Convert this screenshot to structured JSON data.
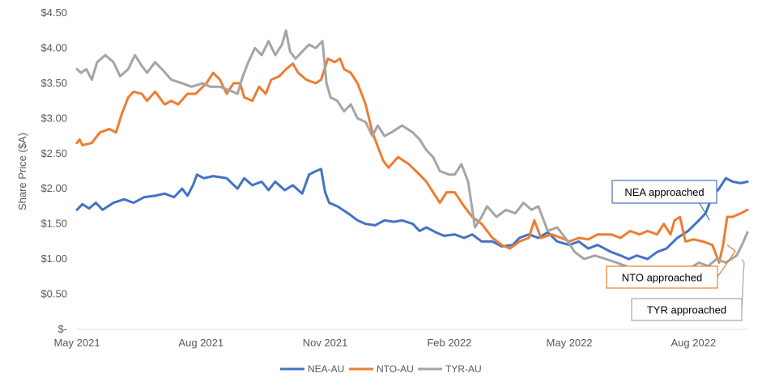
{
  "chart_data": {
    "type": "line",
    "title": "",
    "xlabel": "",
    "ylabel": "Share Price ($A)",
    "ylim": [
      0,
      4.5
    ],
    "yticks": [
      0,
      0.5,
      1.0,
      1.5,
      2.0,
      2.5,
      3.0,
      3.5,
      4.0,
      4.5
    ],
    "ytick_labels": [
      "$-",
      "$0.50",
      "$1.00",
      "$1.50",
      "$2.00",
      "$2.50",
      "$3.00",
      "$3.50",
      "$4.00",
      "$4.50"
    ],
    "xlim": [
      "2021-05-01",
      "2022-09-10"
    ],
    "xticks": [
      "2021-05-01",
      "2021-08-01",
      "2021-11-01",
      "2022-02-01",
      "2022-05-01",
      "2022-08-01"
    ],
    "xtick_labels": [
      "May 2021",
      "Aug 2021",
      "Nov 2021",
      "Feb 2022",
      "May 2022",
      "Aug 2022"
    ],
    "grid": false,
    "legend_position": "bottom",
    "series": [
      {
        "name": "NEA-AU",
        "color": "#4472C4",
        "points": [
          [
            "2021-05-01",
            1.7
          ],
          [
            "2021-05-05",
            1.78
          ],
          [
            "2021-05-10",
            1.72
          ],
          [
            "2021-05-15",
            1.8
          ],
          [
            "2021-05-20",
            1.7
          ],
          [
            "2021-05-28",
            1.8
          ],
          [
            "2021-06-05",
            1.85
          ],
          [
            "2021-06-12",
            1.8
          ],
          [
            "2021-06-20",
            1.88
          ],
          [
            "2021-06-28",
            1.9
          ],
          [
            "2021-07-05",
            1.93
          ],
          [
            "2021-07-12",
            1.88
          ],
          [
            "2021-07-18",
            2.0
          ],
          [
            "2021-07-22",
            1.9
          ],
          [
            "2021-07-26",
            2.05
          ],
          [
            "2021-07-29",
            2.2
          ],
          [
            "2021-08-03",
            2.15
          ],
          [
            "2021-08-10",
            2.18
          ],
          [
            "2021-08-20",
            2.15
          ],
          [
            "2021-08-28",
            2.0
          ],
          [
            "2021-09-02",
            2.15
          ],
          [
            "2021-09-08",
            2.05
          ],
          [
            "2021-09-15",
            2.1
          ],
          [
            "2021-09-20",
            1.98
          ],
          [
            "2021-09-25",
            2.1
          ],
          [
            "2021-10-02",
            1.98
          ],
          [
            "2021-10-08",
            2.05
          ],
          [
            "2021-10-15",
            1.93
          ],
          [
            "2021-10-20",
            2.2
          ],
          [
            "2021-10-25",
            2.25
          ],
          [
            "2021-10-29",
            2.28
          ],
          [
            "2021-11-01",
            1.95
          ],
          [
            "2021-11-04",
            1.8
          ],
          [
            "2021-11-10",
            1.75
          ],
          [
            "2021-11-18",
            1.65
          ],
          [
            "2021-11-25",
            1.55
          ],
          [
            "2021-12-01",
            1.5
          ],
          [
            "2021-12-08",
            1.48
          ],
          [
            "2021-12-15",
            1.55
          ],
          [
            "2021-12-22",
            1.53
          ],
          [
            "2021-12-28",
            1.55
          ],
          [
            "2022-01-05",
            1.5
          ],
          [
            "2022-01-10",
            1.4
          ],
          [
            "2022-01-15",
            1.45
          ],
          [
            "2022-01-22",
            1.38
          ],
          [
            "2022-01-28",
            1.33
          ],
          [
            "2022-02-05",
            1.35
          ],
          [
            "2022-02-12",
            1.3
          ],
          [
            "2022-02-18",
            1.35
          ],
          [
            "2022-02-25",
            1.25
          ],
          [
            "2022-03-05",
            1.25
          ],
          [
            "2022-03-12",
            1.18
          ],
          [
            "2022-03-20",
            1.2
          ],
          [
            "2022-03-25",
            1.3
          ],
          [
            "2022-04-01",
            1.35
          ],
          [
            "2022-04-08",
            1.3
          ],
          [
            "2022-04-15",
            1.38
          ],
          [
            "2022-04-22",
            1.25
          ],
          [
            "2022-05-01",
            1.2
          ],
          [
            "2022-05-08",
            1.25
          ],
          [
            "2022-05-15",
            1.15
          ],
          [
            "2022-05-22",
            1.2
          ],
          [
            "2022-06-01",
            1.1
          ],
          [
            "2022-06-08",
            1.05
          ],
          [
            "2022-06-14",
            1.0
          ],
          [
            "2022-06-20",
            1.05
          ],
          [
            "2022-06-28",
            1.0
          ],
          [
            "2022-07-05",
            1.1
          ],
          [
            "2022-07-12",
            1.15
          ],
          [
            "2022-07-20",
            1.3
          ],
          [
            "2022-07-28",
            1.4
          ],
          [
            "2022-08-05",
            1.55
          ],
          [
            "2022-08-10",
            1.65
          ],
          [
            "2022-08-15",
            1.9
          ],
          [
            "2022-08-20",
            2.0
          ],
          [
            "2022-08-25",
            2.15
          ],
          [
            "2022-08-30",
            2.1
          ],
          [
            "2022-09-05",
            2.08
          ],
          [
            "2022-09-10",
            2.1
          ]
        ]
      },
      {
        "name": "NTO-AU",
        "color": "#ED7D31",
        "points": [
          [
            "2021-05-01",
            2.65
          ],
          [
            "2021-05-03",
            2.7
          ],
          [
            "2021-05-05",
            2.62
          ],
          [
            "2021-05-12",
            2.65
          ],
          [
            "2021-05-18",
            2.8
          ],
          [
            "2021-05-25",
            2.85
          ],
          [
            "2021-05-30",
            2.8
          ],
          [
            "2021-06-03",
            3.05
          ],
          [
            "2021-06-08",
            3.3
          ],
          [
            "2021-06-12",
            3.38
          ],
          [
            "2021-06-18",
            3.35
          ],
          [
            "2021-06-22",
            3.25
          ],
          [
            "2021-06-28",
            3.38
          ],
          [
            "2021-07-05",
            3.2
          ],
          [
            "2021-07-10",
            3.25
          ],
          [
            "2021-07-15",
            3.2
          ],
          [
            "2021-07-22",
            3.35
          ],
          [
            "2021-07-28",
            3.35
          ],
          [
            "2021-08-05",
            3.5
          ],
          [
            "2021-08-10",
            3.65
          ],
          [
            "2021-08-15",
            3.55
          ],
          [
            "2021-08-20",
            3.35
          ],
          [
            "2021-08-25",
            3.5
          ],
          [
            "2021-08-30",
            3.5
          ],
          [
            "2021-09-02",
            3.3
          ],
          [
            "2021-09-08",
            3.25
          ],
          [
            "2021-09-13",
            3.45
          ],
          [
            "2021-09-18",
            3.35
          ],
          [
            "2021-09-22",
            3.55
          ],
          [
            "2021-09-28",
            3.6
          ],
          [
            "2021-10-03",
            3.7
          ],
          [
            "2021-10-08",
            3.78
          ],
          [
            "2021-10-12",
            3.65
          ],
          [
            "2021-10-18",
            3.55
          ],
          [
            "2021-10-25",
            3.5
          ],
          [
            "2021-10-29",
            3.55
          ],
          [
            "2021-11-03",
            3.85
          ],
          [
            "2021-11-08",
            3.8
          ],
          [
            "2021-11-12",
            3.85
          ],
          [
            "2021-11-15",
            3.7
          ],
          [
            "2021-11-20",
            3.65
          ],
          [
            "2021-11-25",
            3.5
          ],
          [
            "2021-12-01",
            3.2
          ],
          [
            "2021-12-06",
            2.8
          ],
          [
            "2021-12-10",
            2.6
          ],
          [
            "2021-12-14",
            2.4
          ],
          [
            "2021-12-18",
            2.3
          ],
          [
            "2021-12-25",
            2.45
          ],
          [
            "2022-01-02",
            2.35
          ],
          [
            "2022-01-10",
            2.2
          ],
          [
            "2022-01-15",
            2.1
          ],
          [
            "2022-01-20",
            1.95
          ],
          [
            "2022-01-25",
            1.8
          ],
          [
            "2022-01-30",
            1.95
          ],
          [
            "2022-02-05",
            1.95
          ],
          [
            "2022-02-12",
            1.75
          ],
          [
            "2022-02-18",
            1.6
          ],
          [
            "2022-02-25",
            1.5
          ],
          [
            "2022-03-05",
            1.3
          ],
          [
            "2022-03-12",
            1.2
          ],
          [
            "2022-03-18",
            1.15
          ],
          [
            "2022-03-25",
            1.25
          ],
          [
            "2022-04-01",
            1.3
          ],
          [
            "2022-04-05",
            1.55
          ],
          [
            "2022-04-10",
            1.3
          ],
          [
            "2022-04-18",
            1.35
          ],
          [
            "2022-04-25",
            1.3
          ],
          [
            "2022-05-01",
            1.25
          ],
          [
            "2022-05-08",
            1.3
          ],
          [
            "2022-05-15",
            1.28
          ],
          [
            "2022-05-22",
            1.35
          ],
          [
            "2022-06-01",
            1.35
          ],
          [
            "2022-06-08",
            1.3
          ],
          [
            "2022-06-15",
            1.4
          ],
          [
            "2022-06-22",
            1.35
          ],
          [
            "2022-06-28",
            1.4
          ],
          [
            "2022-07-05",
            1.35
          ],
          [
            "2022-07-10",
            1.5
          ],
          [
            "2022-07-15",
            1.35
          ],
          [
            "2022-07-18",
            1.55
          ],
          [
            "2022-07-22",
            1.6
          ],
          [
            "2022-07-26",
            1.25
          ],
          [
            "2022-08-01",
            1.28
          ],
          [
            "2022-08-08",
            1.25
          ],
          [
            "2022-08-15",
            1.2
          ],
          [
            "2022-08-20",
            0.95
          ],
          [
            "2022-08-23",
            1.2
          ],
          [
            "2022-08-26",
            1.6
          ],
          [
            "2022-08-30",
            1.6
          ],
          [
            "2022-09-05",
            1.65
          ],
          [
            "2022-09-10",
            1.7
          ]
        ]
      },
      {
        "name": "TYR-AU",
        "color": "#A5A5A5",
        "points": [
          [
            "2021-05-01",
            3.7
          ],
          [
            "2021-05-04",
            3.65
          ],
          [
            "2021-05-08",
            3.7
          ],
          [
            "2021-05-12",
            3.55
          ],
          [
            "2021-05-16",
            3.8
          ],
          [
            "2021-05-22",
            3.9
          ],
          [
            "2021-05-28",
            3.8
          ],
          [
            "2021-06-02",
            3.6
          ],
          [
            "2021-06-08",
            3.7
          ],
          [
            "2021-06-13",
            3.9
          ],
          [
            "2021-06-18",
            3.75
          ],
          [
            "2021-06-22",
            3.65
          ],
          [
            "2021-06-28",
            3.8
          ],
          [
            "2021-07-03",
            3.7
          ],
          [
            "2021-07-10",
            3.55
          ],
          [
            "2021-07-18",
            3.5
          ],
          [
            "2021-07-25",
            3.45
          ],
          [
            "2021-08-02",
            3.5
          ],
          [
            "2021-08-08",
            3.45
          ],
          [
            "2021-08-15",
            3.45
          ],
          [
            "2021-08-22",
            3.4
          ],
          [
            "2021-08-28",
            3.35
          ],
          [
            "2021-09-01",
            3.6
          ],
          [
            "2021-09-05",
            3.8
          ],
          [
            "2021-09-10",
            4.0
          ],
          [
            "2021-09-15",
            3.9
          ],
          [
            "2021-09-20",
            4.1
          ],
          [
            "2021-09-25",
            3.9
          ],
          [
            "2021-09-30",
            4.05
          ],
          [
            "2021-10-03",
            4.25
          ],
          [
            "2021-10-06",
            3.95
          ],
          [
            "2021-10-10",
            3.85
          ],
          [
            "2021-10-15",
            3.95
          ],
          [
            "2021-10-20",
            4.05
          ],
          [
            "2021-10-25",
            4.0
          ],
          [
            "2021-10-30",
            4.1
          ],
          [
            "2021-11-02",
            3.5
          ],
          [
            "2021-11-05",
            3.3
          ],
          [
            "2021-11-10",
            3.25
          ],
          [
            "2021-11-15",
            3.1
          ],
          [
            "2021-11-20",
            3.2
          ],
          [
            "2021-11-25",
            3.0
          ],
          [
            "2021-12-01",
            2.95
          ],
          [
            "2021-12-06",
            2.75
          ],
          [
            "2021-12-10",
            2.9
          ],
          [
            "2021-12-15",
            2.75
          ],
          [
            "2021-12-20",
            2.8
          ],
          [
            "2021-12-28",
            2.9
          ],
          [
            "2022-01-05",
            2.8
          ],
          [
            "2022-01-10",
            2.7
          ],
          [
            "2022-01-15",
            2.55
          ],
          [
            "2022-01-20",
            2.45
          ],
          [
            "2022-01-25",
            2.25
          ],
          [
            "2022-02-01",
            2.2
          ],
          [
            "2022-02-05",
            2.2
          ],
          [
            "2022-02-10",
            2.35
          ],
          [
            "2022-02-15",
            2.1
          ],
          [
            "2022-02-20",
            1.45
          ],
          [
            "2022-02-25",
            1.6
          ],
          [
            "2022-03-01",
            1.75
          ],
          [
            "2022-03-08",
            1.6
          ],
          [
            "2022-03-15",
            1.7
          ],
          [
            "2022-03-22",
            1.65
          ],
          [
            "2022-03-28",
            1.8
          ],
          [
            "2022-04-03",
            1.7
          ],
          [
            "2022-04-08",
            1.75
          ],
          [
            "2022-04-15",
            1.4
          ],
          [
            "2022-04-22",
            1.45
          ],
          [
            "2022-04-28",
            1.3
          ],
          [
            "2022-05-05",
            1.1
          ],
          [
            "2022-05-12",
            1.0
          ],
          [
            "2022-05-20",
            1.05
          ],
          [
            "2022-05-28",
            1.0
          ],
          [
            "2022-06-05",
            0.95
          ],
          [
            "2022-06-12",
            0.9
          ],
          [
            "2022-06-20",
            0.8
          ],
          [
            "2022-06-28",
            0.7
          ],
          [
            "2022-07-05",
            0.6
          ],
          [
            "2022-07-12",
            0.65
          ],
          [
            "2022-07-20",
            0.8
          ],
          [
            "2022-07-28",
            0.85
          ],
          [
            "2022-08-05",
            0.95
          ],
          [
            "2022-08-12",
            0.9
          ],
          [
            "2022-08-18",
            1.0
          ],
          [
            "2022-08-25",
            0.95
          ],
          [
            "2022-08-29",
            1.0
          ],
          [
            "2022-09-02",
            1.05
          ],
          [
            "2022-09-06",
            1.2
          ],
          [
            "2022-09-10",
            1.38
          ]
        ]
      }
    ],
    "annotations": [
      {
        "text": "NEA approached",
        "color": "#4472C4",
        "date": "2022-08-13",
        "value": 1.55
      },
      {
        "text": "NTO approached",
        "color": "#ED7D31",
        "date": "2022-08-26",
        "value": 1.2
      },
      {
        "text": "TYR approached",
        "color": "#A5A5A5",
        "date": "2022-09-06",
        "value": 1.0
      }
    ]
  }
}
